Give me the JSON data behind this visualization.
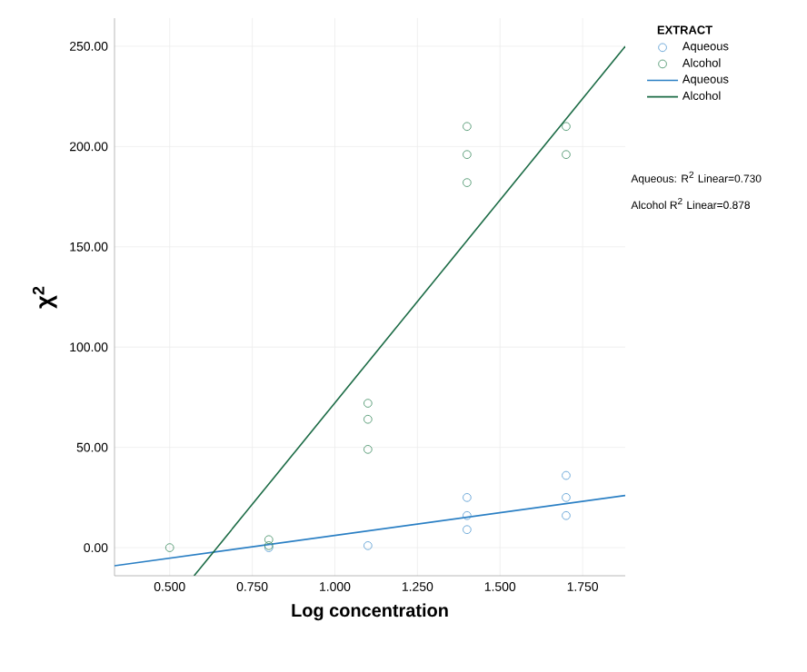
{
  "chart_data": {
    "type": "scatter",
    "xlabel": "Log concentration",
    "ylabel": "χ$^{2}$",
    "legend_title": "EXTRACT",
    "xlim": [
      0.333,
      1.879
    ],
    "ylim": [
      -14,
      264
    ],
    "xticks": [
      {
        "value": 0.5,
        "label": "0.500"
      },
      {
        "value": 0.75,
        "label": "0.750"
      },
      {
        "value": 1.0,
        "label": "1.000"
      },
      {
        "value": 1.25,
        "label": "1.250"
      },
      {
        "value": 1.5,
        "label": "1.500"
      },
      {
        "value": 1.75,
        "label": "1.750"
      }
    ],
    "yticks": [
      {
        "value": 0,
        "label": "0.00"
      },
      {
        "value": 50,
        "label": "50.00"
      },
      {
        "value": 100,
        "label": "100.00"
      },
      {
        "value": 150,
        "label": "150.00"
      },
      {
        "value": 200,
        "label": "200.00"
      },
      {
        "value": 250,
        "label": "250.00"
      }
    ],
    "grid": true,
    "legend": "right",
    "marker": "circle",
    "series": [
      {
        "name": "Aqueous",
        "color": "#4f97d0",
        "x": [
          0.8,
          1.1,
          1.4,
          1.4,
          1.4,
          1.7,
          1.7,
          1.7
        ],
        "values": [
          0,
          1,
          25,
          16,
          9,
          36,
          25,
          16
        ]
      },
      {
        "name": "Alcohol",
        "color": "#3a8a5e",
        "x": [
          0.5,
          0.8,
          0.8,
          1.1,
          1.1,
          1.1,
          1.4,
          1.4,
          1.4,
          1.7,
          1.7
        ],
        "values": [
          0,
          4,
          1,
          72,
          64,
          49,
          210,
          196,
          182,
          210,
          196
        ]
      },
      {
        "name": "Aqueous",
        "type": "line",
        "marker": "none",
        "color": "#2a7fc4",
        "x": [
          0.333,
          1.879
        ],
        "values": [
          -9,
          26
        ]
      },
      {
        "name": "Alcohol",
        "type": "line",
        "marker": "none",
        "color": "#1b6b45",
        "x": [
          0.574,
          1.879
        ],
        "values": [
          -14,
          250
        ]
      }
    ],
    "annotations": [
      "Aqueous: R$^{2}$ Linear=0.730",
      "Alcohol R$^{2}$ Linear=0.878"
    ]
  }
}
